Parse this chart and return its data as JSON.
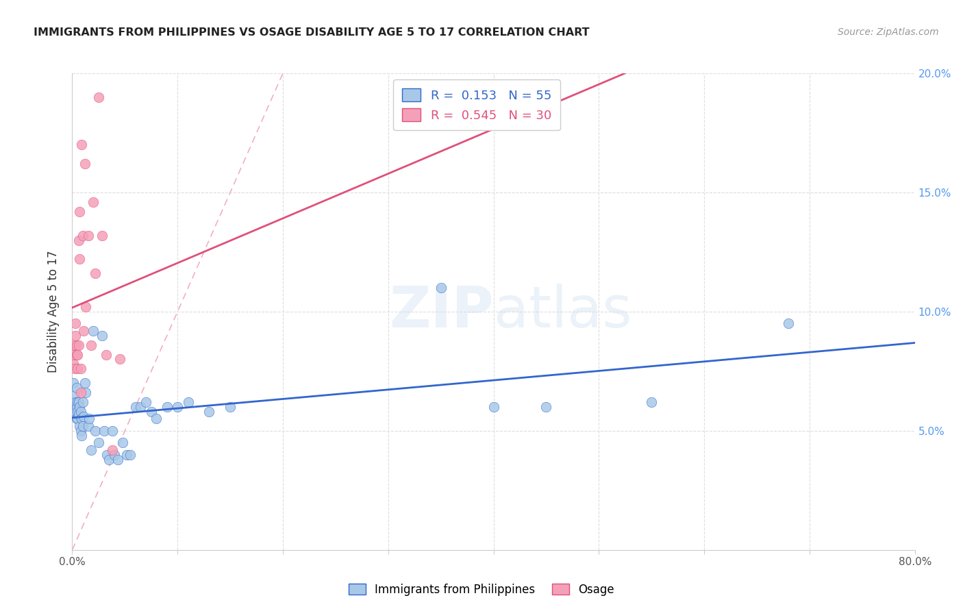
{
  "title": "IMMIGRANTS FROM PHILIPPINES VS OSAGE DISABILITY AGE 5 TO 17 CORRELATION CHART",
  "source": "Source: ZipAtlas.com",
  "ylabel": "Disability Age 5 to 17",
  "legend_label_blue": "Immigrants from Philippines",
  "legend_label_pink": "Osage",
  "R_blue": 0.153,
  "N_blue": 55,
  "R_pink": 0.545,
  "N_pink": 30,
  "xlim": [
    0.0,
    0.8
  ],
  "ylim": [
    0.0,
    0.2
  ],
  "color_blue": "#A8C8E8",
  "color_pink": "#F4A0B8",
  "line_color_blue": "#3366CC",
  "line_color_pink": "#E0507A",
  "blue_x": [
    0.001,
    0.002,
    0.002,
    0.003,
    0.003,
    0.004,
    0.004,
    0.004,
    0.005,
    0.005,
    0.005,
    0.006,
    0.006,
    0.007,
    0.007,
    0.008,
    0.008,
    0.009,
    0.009,
    0.01,
    0.01,
    0.011,
    0.012,
    0.013,
    0.015,
    0.016,
    0.018,
    0.02,
    0.022,
    0.025,
    0.028,
    0.03,
    0.033,
    0.035,
    0.038,
    0.04,
    0.043,
    0.048,
    0.052,
    0.055,
    0.06,
    0.065,
    0.07,
    0.075,
    0.08,
    0.09,
    0.1,
    0.11,
    0.13,
    0.15,
    0.35,
    0.4,
    0.45,
    0.55,
    0.68
  ],
  "blue_y": [
    0.07,
    0.065,
    0.06,
    0.058,
    0.062,
    0.068,
    0.055,
    0.06,
    0.055,
    0.062,
    0.058,
    0.057,
    0.062,
    0.052,
    0.06,
    0.05,
    0.058,
    0.055,
    0.048,
    0.052,
    0.062,
    0.056,
    0.07,
    0.066,
    0.052,
    0.055,
    0.042,
    0.092,
    0.05,
    0.045,
    0.09,
    0.05,
    0.04,
    0.038,
    0.05,
    0.04,
    0.038,
    0.045,
    0.04,
    0.04,
    0.06,
    0.06,
    0.062,
    0.058,
    0.055,
    0.06,
    0.06,
    0.062,
    0.058,
    0.06,
    0.11,
    0.06,
    0.06,
    0.062,
    0.095
  ],
  "pink_x": [
    0.001,
    0.001,
    0.002,
    0.002,
    0.003,
    0.003,
    0.004,
    0.004,
    0.005,
    0.005,
    0.006,
    0.006,
    0.007,
    0.007,
    0.008,
    0.008,
    0.009,
    0.01,
    0.011,
    0.012,
    0.013,
    0.015,
    0.018,
    0.02,
    0.022,
    0.025,
    0.028,
    0.032,
    0.038,
    0.045
  ],
  "pink_y": [
    0.078,
    0.082,
    0.076,
    0.086,
    0.09,
    0.095,
    0.082,
    0.086,
    0.076,
    0.082,
    0.086,
    0.13,
    0.122,
    0.142,
    0.066,
    0.076,
    0.17,
    0.132,
    0.092,
    0.162,
    0.102,
    0.132,
    0.086,
    0.146,
    0.116,
    0.19,
    0.132,
    0.082,
    0.042,
    0.08
  ],
  "diag_line_x": [
    0.0,
    0.2
  ],
  "diag_line_y": [
    0.0,
    0.2
  ]
}
